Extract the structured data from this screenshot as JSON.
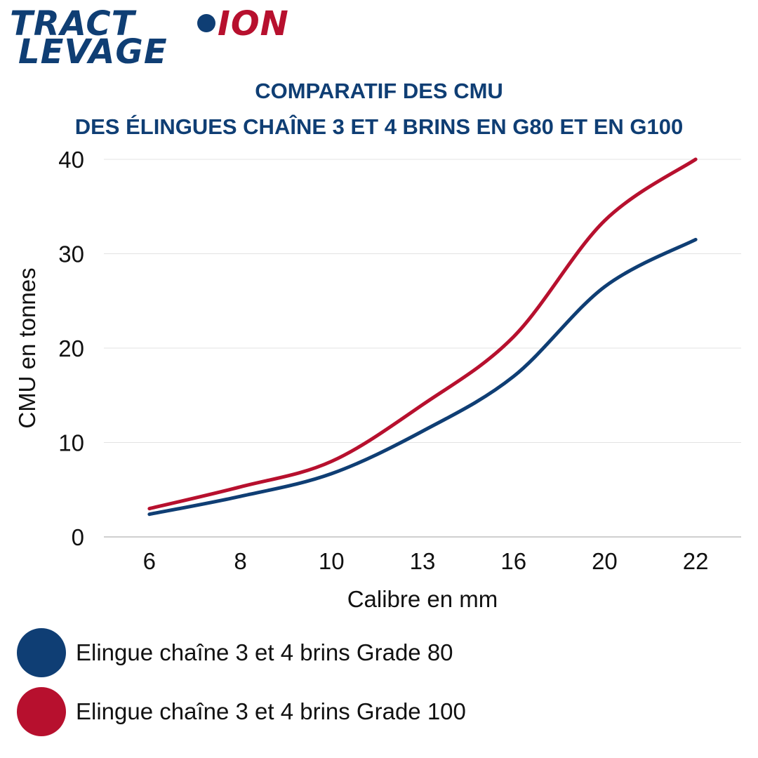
{
  "logo": {
    "line1_part1": "TRACT",
    "line1_part2": "ION",
    "line2": "LEVAGE",
    "color_blue": "#0f3e74",
    "color_red": "#b7102e"
  },
  "title": {
    "line1": "COMPARATIF DES CMU",
    "line2": "DES ÉLINGUES CHAÎNE 3 ET 4 BRINS EN G80 ET EN G100"
  },
  "chart_data": {
    "type": "line",
    "categories": [
      "6",
      "8",
      "10",
      "13",
      "16",
      "20",
      "22"
    ],
    "series": [
      {
        "name": "Elingue chaîne 3 et 4 brins Grade 80",
        "color": "#0f3e74",
        "values": [
          2.4,
          4.3,
          6.7,
          11.2,
          17.0,
          26.5,
          31.5
        ]
      },
      {
        "name": "Elingue chaîne 3 et 4 brins Grade 100",
        "color": "#b7102e",
        "values": [
          3.0,
          5.3,
          8.0,
          14.0,
          21.2,
          33.5,
          40.0
        ]
      }
    ],
    "yticks": [
      "0",
      "10",
      "20",
      "30",
      "40"
    ],
    "ylim": [
      0,
      40
    ],
    "xlabel": "Calibre en mm",
    "ylabel": "CMU en tonnes",
    "grid": true,
    "legend_position": "bottom"
  }
}
